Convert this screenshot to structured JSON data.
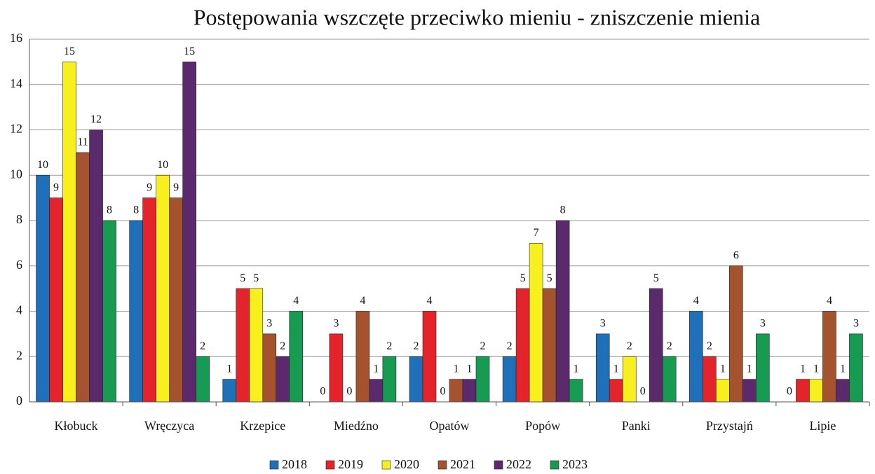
{
  "chart_data": {
    "type": "bar",
    "title": "Postępowania wszczęte przeciwko mieniu - zniszczenie mienia",
    "categories": [
      "Kłobuck",
      "Wręczyca",
      "Krzepice",
      "Miedźno",
      "Opatów",
      "Popów",
      "Panki",
      "Przystajń",
      "Lipie"
    ],
    "series": [
      {
        "name": "2018",
        "color": "#1f70b8",
        "values": [
          10,
          8,
          1,
          0,
          2,
          2,
          3,
          4,
          0
        ]
      },
      {
        "name": "2019",
        "color": "#e3242b",
        "values": [
          9,
          9,
          5,
          3,
          4,
          5,
          1,
          2,
          1
        ]
      },
      {
        "name": "2020",
        "color": "#f7f01e",
        "values": [
          15,
          10,
          5,
          0,
          0,
          7,
          2,
          1,
          1
        ]
      },
      {
        "name": "2021",
        "color": "#a5522e",
        "values": [
          11,
          9,
          3,
          4,
          1,
          5,
          0,
          6,
          4
        ]
      },
      {
        "name": "2022",
        "color": "#5a2a6c",
        "values": [
          12,
          15,
          2,
          1,
          1,
          8,
          5,
          1,
          1
        ]
      },
      {
        "name": "2023",
        "color": "#179a52",
        "values": [
          8,
          2,
          4,
          2,
          2,
          1,
          2,
          3,
          3
        ]
      }
    ],
    "ylim": [
      0,
      16
    ],
    "yticks": [
      0,
      2,
      4,
      6,
      8,
      10,
      12,
      14,
      16
    ],
    "grid": true,
    "legend": "bottom"
  }
}
